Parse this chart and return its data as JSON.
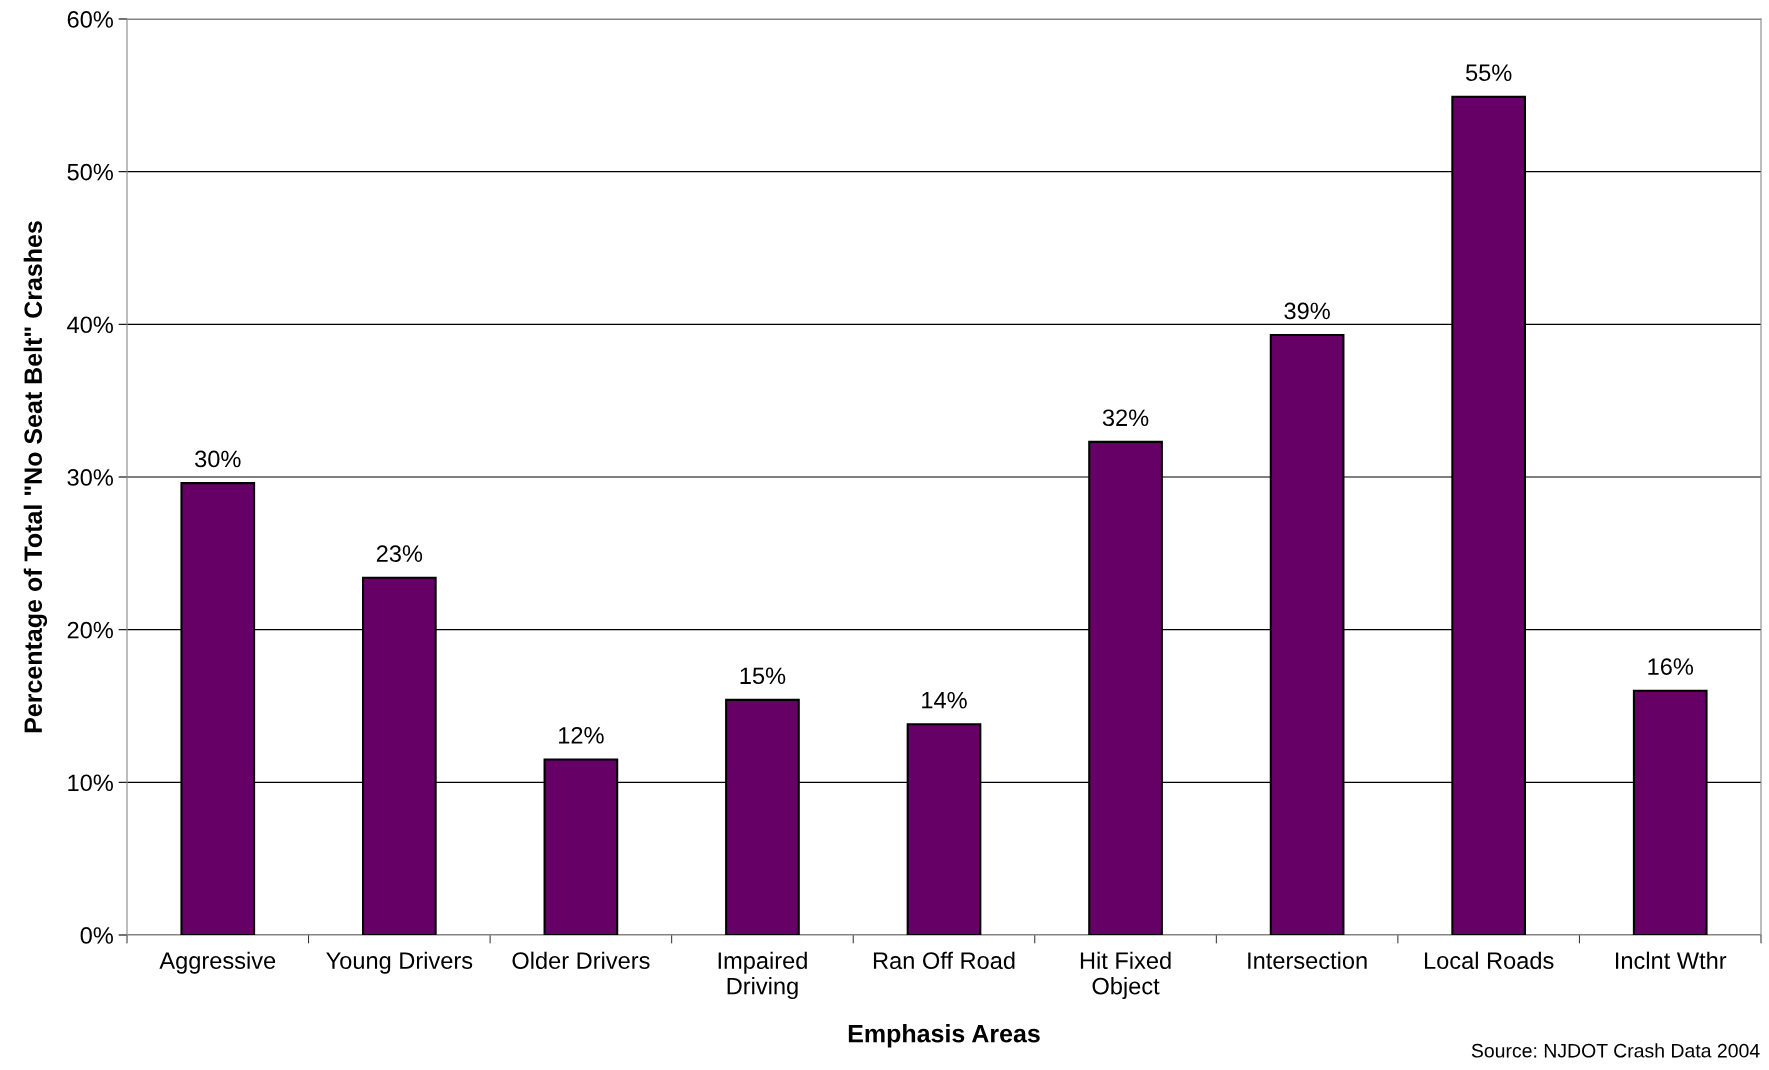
{
  "chart_data": {
    "type": "bar",
    "xlabel": "Emphasis Areas",
    "ylabel": "Percentage of Total \"No Seat Belt\" Crashes",
    "categories": [
      "Aggressive",
      "Young Drivers",
      "Older Drivers",
      "Impaired\nDriving",
      "Ran Off Road",
      "Hit Fixed\nObject",
      "Intersection",
      "Local Roads",
      "Inclnt Wthr"
    ],
    "values": [
      29.6,
      23.4,
      11.5,
      15.4,
      13.8,
      32.3,
      39.3,
      54.9,
      16.0
    ],
    "value_labels": [
      "30%",
      "23%",
      "12%",
      "15%",
      "14%",
      "32%",
      "39%",
      "55%",
      "16%"
    ],
    "color": "#660066",
    "ylim": [
      0,
      60
    ],
    "yticks": [
      {
        "value": 0,
        "label": "0%"
      },
      {
        "value": 10,
        "label": "10%"
      },
      {
        "value": 20,
        "label": "20%"
      },
      {
        "value": 30,
        "label": "30%"
      },
      {
        "value": 40,
        "label": "40%"
      },
      {
        "value": 50,
        "label": "50%"
      },
      {
        "value": 60,
        "label": "60%"
      }
    ],
    "grid": "y",
    "annotations": [
      "Source: NJDOT Crash Data 2004"
    ]
  }
}
